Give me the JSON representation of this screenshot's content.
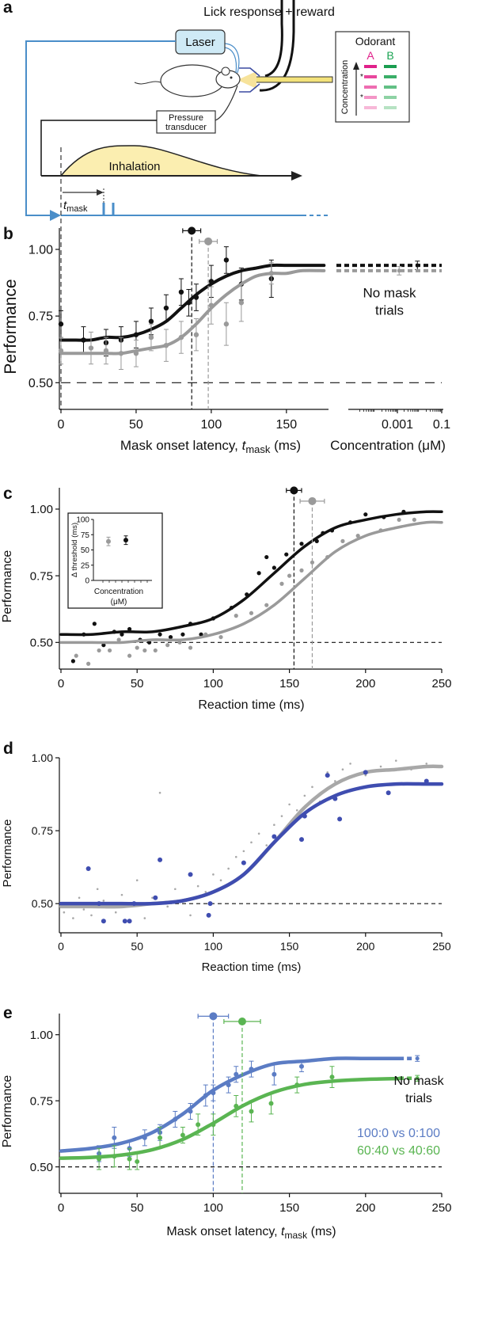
{
  "panel_labels": [
    "a",
    "b",
    "c",
    "d",
    "e"
  ],
  "diagram": {
    "lick_label": "Lick response + reward",
    "laser": "Laser",
    "odorant": "Odorant",
    "odor_a": "A",
    "odor_b": "B",
    "asterisk": "*",
    "concentration": "Concentration",
    "transducer": [
      "Pressure",
      "transducer"
    ],
    "inhalation": "Inhalation",
    "t_mask": {
      "var": "t",
      "sub": "mask"
    }
  },
  "chart_data": [
    {
      "type": "line",
      "ylabel": "Performance",
      "xlabel": {
        "text": "Mask onset latency, ",
        "var": "t",
        "sub": "mask",
        "unit": " (ms)"
      },
      "xlim": [
        0,
        178
      ],
      "xticks": [
        0,
        50,
        100,
        150
      ],
      "ylim": [
        0.4,
        1.08
      ],
      "yticks": [
        {
          "value": 0.5,
          "label": "0.50"
        },
        {
          "value": 0.75,
          "label": "0.75"
        },
        {
          "value": 1,
          "label": "1.00"
        }
      ],
      "reference_y": 0.5,
      "concentration_axis": {
        "label": "Concentration (μM)",
        "log": true,
        "xlim": [
          1e-05,
          0.1
        ],
        "xticks": [
          0.001,
          0.1
        ]
      },
      "annotation": [
        "No mask",
        "trials"
      ],
      "series": [
        {
          "color": "#111111",
          "points": {
            "x": [
              0,
              15,
              30,
              40,
              50,
              60,
              70,
              80,
              85,
              90,
              100,
              110,
              120,
              140
            ],
            "values": [
              0.72,
              0.66,
              0.65,
              0.66,
              0.68,
              0.73,
              0.78,
              0.84,
              0.8,
              0.82,
              0.88,
              0.96,
              0.87,
              0.89
            ],
            "errors": [
              0.05,
              0.05,
              0.05,
              0.05,
              0.05,
              0.05,
              0.05,
              0.05,
              0.05,
              0.05,
              0.06,
              0.05,
              0.06,
              0.07
            ]
          },
          "fit": {
            "x": [
              0,
              10,
              20,
              30,
              40,
              50,
              60,
              70,
              80,
              90,
              100,
              110,
              120,
              130,
              140,
              150,
              160,
              175
            ],
            "values": [
              0.66,
              0.66,
              0.66,
              0.67,
              0.67,
              0.68,
              0.7,
              0.73,
              0.78,
              0.83,
              0.87,
              0.9,
              0.92,
              0.93,
              0.94,
              0.94,
              0.94,
              0.94
            ]
          },
          "threshold": {
            "value": 87,
            "error": 6,
            "y": 1.07
          },
          "no_mask": {
            "x": 0.008,
            "value": 0.94,
            "error": 0.01
          }
        },
        {
          "color": "#9a9a9a",
          "points": {
            "x": [
              0,
              20,
              30,
              40,
              50,
              60,
              70,
              80,
              90,
              100,
              110,
              120,
              140
            ],
            "values": [
              0.62,
              0.63,
              0.62,
              0.61,
              0.61,
              0.67,
              0.64,
              0.67,
              0.68,
              0.79,
              0.72,
              0.8,
              0.91
            ],
            "errors": [
              0.05,
              0.06,
              0.05,
              0.06,
              0.05,
              0.05,
              0.06,
              0.06,
              0.06,
              0.07,
              0.08,
              0.07,
              0.04
            ]
          },
          "fit": {
            "x": [
              0,
              10,
              20,
              30,
              40,
              50,
              60,
              70,
              80,
              90,
              100,
              110,
              120,
              130,
              140,
              150,
              160,
              175
            ],
            "values": [
              0.61,
              0.61,
              0.61,
              0.61,
              0.61,
              0.62,
              0.63,
              0.64,
              0.67,
              0.72,
              0.78,
              0.83,
              0.87,
              0.9,
              0.91,
              0.91,
              0.92,
              0.92
            ]
          },
          "threshold": {
            "value": 98,
            "error": 6,
            "y": 1.03
          },
          "no_mask": {
            "x": 0.0012,
            "value": 0.92,
            "error": 0.01
          }
        }
      ]
    },
    {
      "type": "line",
      "ylabel": "Performance",
      "xlabel": "Reaction time (ms)",
      "xlim": [
        0,
        250
      ],
      "xticks": [
        0,
        50,
        100,
        150,
        200,
        250
      ],
      "ylim": [
        0.4,
        1.08
      ],
      "yticks": [
        {
          "value": 0.5,
          "label": "0.50"
        },
        {
          "value": 0.75,
          "label": "0.75"
        },
        {
          "value": 1,
          "label": "1.00"
        }
      ],
      "reference_y": 0.5,
      "series": [
        {
          "color": "#111111",
          "points": {
            "x": [
              8,
              15,
              22,
              28,
              35,
              40,
              45,
              52,
              58,
              65,
              72,
              80,
              85,
              92,
              100,
              112,
              122,
              130,
              135,
              140,
              148,
              158,
              168,
              172,
              178,
              190,
              200,
              212,
              225
            ],
            "values": [
              0.43,
              0.53,
              0.57,
              0.49,
              0.54,
              0.53,
              0.55,
              0.51,
              0.5,
              0.53,
              0.52,
              0.53,
              0.57,
              0.53,
              0.59,
              0.63,
              0.68,
              0.76,
              0.82,
              0.78,
              0.83,
              0.87,
              0.88,
              0.91,
              0.92,
              0.95,
              0.98,
              0.97,
              0.99
            ]
          },
          "fit": {
            "x": [
              0,
              20,
              40,
              60,
              80,
              100,
              120,
              140,
              160,
              180,
              200,
              220,
              240,
              250
            ],
            "values": [
              0.53,
              0.53,
              0.54,
              0.54,
              0.56,
              0.59,
              0.66,
              0.76,
              0.86,
              0.93,
              0.96,
              0.98,
              0.99,
              0.99
            ]
          },
          "threshold": {
            "value": 153,
            "error": 5,
            "y": 1.07
          }
        },
        {
          "color": "#9a9a9a",
          "points": {
            "x": [
              10,
              18,
              25,
              32,
              38,
              45,
              50,
              55,
              62,
              70,
              78,
              85,
              95,
              105,
              115,
              125,
              135,
              145,
              150,
              158,
              165,
              175,
              185,
              195,
              210,
              222,
              232
            ],
            "values": [
              0.45,
              0.42,
              0.47,
              0.47,
              0.51,
              0.45,
              0.48,
              0.47,
              0.47,
              0.49,
              0.5,
              0.48,
              0.53,
              0.52,
              0.6,
              0.61,
              0.64,
              0.72,
              0.75,
              0.77,
              0.8,
              0.82,
              0.88,
              0.9,
              0.92,
              0.96,
              0.96
            ]
          },
          "fit": {
            "x": [
              0,
              20,
              40,
              60,
              80,
              100,
              120,
              140,
              160,
              180,
              200,
              220,
              240,
              250
            ],
            "values": [
              0.5,
              0.5,
              0.5,
              0.51,
              0.51,
              0.53,
              0.57,
              0.64,
              0.74,
              0.84,
              0.9,
              0.93,
              0.95,
              0.95
            ]
          },
          "threshold": {
            "value": 165,
            "error": 8,
            "y": 1.03
          }
        }
      ],
      "inset": {
        "ylabel": "Δ threshold (ms)",
        "xlabel": [
          "Concentration",
          "(μM)"
        ],
        "ylim": [
          0,
          100
        ],
        "yticks": [
          0,
          25,
          50,
          75,
          100
        ],
        "points": [
          {
            "color": "#9a9a9a",
            "value": 64,
            "error": 7
          },
          {
            "color": "#111111",
            "value": 66,
            "error": 7
          }
        ]
      }
    },
    {
      "type": "line",
      "ylabel": "Performance",
      "xlabel": "Reaction time (ms)",
      "xlim": [
        0,
        250
      ],
      "xticks": [
        0,
        50,
        100,
        150,
        200,
        250
      ],
      "ylim": [
        0.4,
        1.0
      ],
      "yticks": [
        {
          "value": 0.5,
          "label": "0.50"
        },
        {
          "value": 0.75,
          "label": "0.75"
        },
        {
          "value": 1,
          "label": "1.00"
        }
      ],
      "reference_y": 0.5,
      "series": [
        {
          "color": "#a8a8a8",
          "dot": "small",
          "points": {
            "x": [
              2,
              5,
              8,
              12,
              15,
              20,
              24,
              28,
              32,
              36,
              40,
              45,
              50,
              55,
              60,
              65,
              70,
              75,
              80,
              85,
              90,
              95,
              100,
              105,
              110,
              115,
              120,
              125,
              130,
              135,
              140,
              145,
              150,
              155,
              160,
              165,
              170,
              175,
              180,
              185,
              190,
              200,
              210,
              220,
              230,
              240,
              248
            ],
            "values": [
              0.47,
              0.5,
              0.45,
              0.52,
              0.48,
              0.46,
              0.55,
              0.51,
              0.49,
              0.47,
              0.53,
              0.5,
              0.58,
              0.45,
              0.52,
              0.88,
              0.49,
              0.55,
              0.51,
              0.46,
              0.56,
              0.54,
              0.6,
              0.58,
              0.62,
              0.66,
              0.68,
              0.71,
              0.74,
              0.7,
              0.77,
              0.8,
              0.84,
              0.82,
              0.87,
              0.9,
              0.85,
              0.95,
              0.92,
              0.96,
              0.98,
              0.94,
              0.97,
              0.99,
              0.96,
              0.98,
              0.97
            ]
          },
          "fit": {
            "x": [
              0,
              20,
              40,
              60,
              80,
              100,
              120,
              140,
              160,
              180,
              200,
              220,
              240,
              250
            ],
            "values": [
              0.49,
              0.49,
              0.49,
              0.5,
              0.51,
              0.54,
              0.6,
              0.71,
              0.83,
              0.91,
              0.95,
              0.96,
              0.97,
              0.97
            ]
          }
        },
        {
          "color": "#3f4db0",
          "points": {
            "x": [
              18,
              25,
              28,
              42,
              45,
              48,
              62,
              65,
              85,
              97,
              98,
              120,
              140,
              158,
              160,
              175,
              180,
              183,
              200,
              215,
              240
            ],
            "values": [
              0.62,
              0.5,
              0.44,
              0.44,
              0.44,
              0.5,
              0.52,
              0.65,
              0.6,
              0.46,
              0.5,
              0.64,
              0.73,
              0.72,
              0.8,
              0.94,
              0.86,
              0.79,
              0.95,
              0.88,
              0.92
            ]
          },
          "fit": {
            "x": [
              0,
              20,
              40,
              60,
              80,
              100,
              120,
              140,
              160,
              180,
              200,
              220,
              240,
              250
            ],
            "values": [
              0.5,
              0.5,
              0.5,
              0.5,
              0.51,
              0.54,
              0.6,
              0.71,
              0.81,
              0.87,
              0.9,
              0.91,
              0.91,
              0.91
            ]
          }
        }
      ]
    },
    {
      "type": "line",
      "ylabel": "Performance",
      "xlabel": {
        "text": "Mask onset latency, ",
        "var": "t",
        "sub": "mask",
        "unit": " (ms)"
      },
      "xlim": [
        0,
        250
      ],
      "xticks": [
        0,
        50,
        100,
        150,
        200,
        250
      ],
      "ylim": [
        0.4,
        1.08
      ],
      "yticks": [
        {
          "value": 0.5,
          "label": "0.50"
        },
        {
          "value": 0.75,
          "label": "0.75"
        },
        {
          "value": 1,
          "label": "1.00"
        }
      ],
      "reference_y": 0.5,
      "annotation": [
        "No mask",
        "trials"
      ],
      "series": [
        {
          "name": "100:0 vs 0:100",
          "color": "#5b7cc4",
          "points": {
            "x": [
              25,
              35,
              45,
              55,
              65,
              75,
              85,
              95,
              100,
              110,
              115,
              125,
              140,
              158
            ],
            "values": [
              0.55,
              0.61,
              0.57,
              0.61,
              0.63,
              0.68,
              0.71,
              0.77,
              0.78,
              0.81,
              0.85,
              0.87,
              0.85,
              0.88
            ],
            "errors": [
              0.03,
              0.04,
              0.03,
              0.03,
              0.03,
              0.03,
              0.03,
              0.04,
              0.03,
              0.03,
              0.03,
              0.03,
              0.04,
              0.02
            ]
          },
          "fit": {
            "x": [
              0,
              20,
              40,
              60,
              80,
              100,
              120,
              140,
              160,
              180,
              200,
              222
            ],
            "values": [
              0.56,
              0.57,
              0.59,
              0.63,
              0.7,
              0.79,
              0.85,
              0.89,
              0.9,
              0.91,
              0.91,
              0.91
            ]
          },
          "threshold": {
            "value": 100,
            "error": 10,
            "y": 1.07
          },
          "no_mask": {
            "x": 234,
            "value": 0.91,
            "error": 0.005
          }
        },
        {
          "name": "60:40 vs 40:60",
          "color": "#5ab552",
          "points": {
            "x": [
              25,
              35,
              45,
              50,
              65,
              80,
              90,
              100,
              115,
              125,
              138,
              155,
              178
            ],
            "values": [
              0.53,
              0.54,
              0.53,
              0.52,
              0.61,
              0.62,
              0.66,
              0.66,
              0.73,
              0.71,
              0.74,
              0.81,
              0.84
            ],
            "errors": [
              0.04,
              0.04,
              0.04,
              0.03,
              0.04,
              0.03,
              0.04,
              0.04,
              0.04,
              0.04,
              0.04,
              0.03,
              0.04
            ]
          },
          "fit": {
            "x": [
              0,
              20,
              40,
              60,
              80,
              100,
              120,
              140,
              160,
              180,
              200,
              222
            ],
            "values": [
              0.533,
              0.536,
              0.545,
              0.565,
              0.604,
              0.665,
              0.733,
              0.783,
              0.812,
              0.825,
              0.831,
              0.834
            ]
          },
          "threshold": {
            "value": 119,
            "error": 12,
            "y": 1.05
          },
          "no_mask": {
            "x": 234,
            "value": 0.835,
            "error": 0.005
          }
        }
      ]
    }
  ]
}
